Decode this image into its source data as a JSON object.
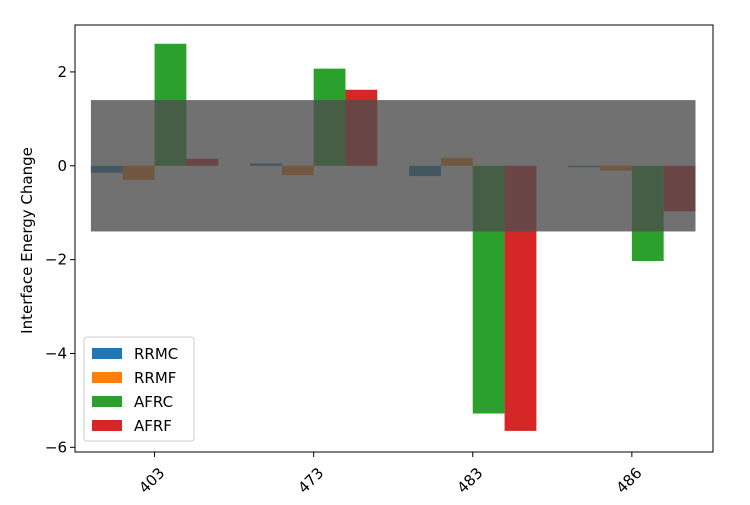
{
  "chart_data": {
    "type": "bar",
    "categories": [
      "403",
      "473",
      "483",
      "486"
    ],
    "series": [
      {
        "name": "RRMC",
        "color": "#1f77b4",
        "values": [
          -0.15,
          0.05,
          -0.22,
          -0.03
        ]
      },
      {
        "name": "RRMF",
        "color": "#ff7f0e",
        "values": [
          -0.3,
          -0.2,
          0.17,
          -0.1
        ]
      },
      {
        "name": "AFRC",
        "color": "#2ca02c",
        "values": [
          2.6,
          2.07,
          -5.28,
          -2.03
        ]
      },
      {
        "name": "AFRF",
        "color": "#d62728",
        "values": [
          0.15,
          1.62,
          -5.65,
          -0.97
        ]
      }
    ],
    "xlabel": "",
    "ylabel": "Interface Energy Change",
    "ylim": [
      -6.1,
      3.0
    ],
    "yticks": [
      {
        "value": -6,
        "label": "−6"
      },
      {
        "value": -4,
        "label": "−4"
      },
      {
        "value": -2,
        "label": "−2"
      },
      {
        "value": 0,
        "label": "0"
      },
      {
        "value": 2,
        "label": "2"
      }
    ],
    "shaded_band": {
      "y_min": -1.4,
      "y_max": 1.4,
      "color": "#4d4d4d",
      "opacity": 0.8
    },
    "legend_position": "lower-left",
    "grid": false
  }
}
